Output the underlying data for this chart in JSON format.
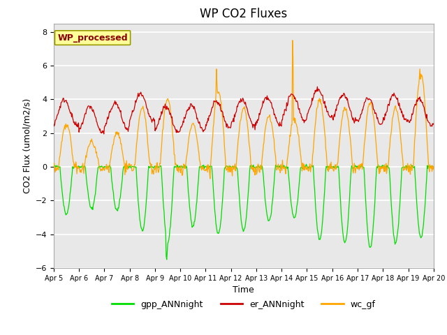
{
  "title": "WP CO2 Fluxes",
  "xlabel": "Time",
  "ylabel_plain": "CO2 Flux (umol/m2/s)",
  "ylim": [
    -6,
    8.5
  ],
  "yticks": [
    -6,
    -4,
    -2,
    0,
    2,
    4,
    6,
    8
  ],
  "xtick_labels": [
    "Apr 5",
    "Apr 6",
    "Apr 7",
    "Apr 8",
    "Apr 9",
    "Apr 10",
    "Apr 11",
    "Apr 12",
    "Apr 13",
    "Apr 14",
    "Apr 15",
    "Apr 16",
    "Apr 17",
    "Apr 18",
    "Apr 19",
    "Apr 20"
  ],
  "colors": {
    "gpp": "#00DD00",
    "er": "#CC0000",
    "wc": "#FFA500"
  },
  "legend_label": "WP_processed",
  "legend_label_color": "#8B0000",
  "legend_box_facecolor": "#FFFF99",
  "legend_box_edgecolor": "#999900",
  "series_labels": [
    "gpp_ANNnight",
    "er_ANNnight",
    "wc_gf"
  ],
  "background_color": "#E8E8E8",
  "fig_background": "#FFFFFF",
  "n_points_per_day": 48,
  "n_days": 15,
  "title_fontsize": 12,
  "axis_label_fontsize": 9,
  "tick_fontsize": 8,
  "legend_fontsize": 9
}
